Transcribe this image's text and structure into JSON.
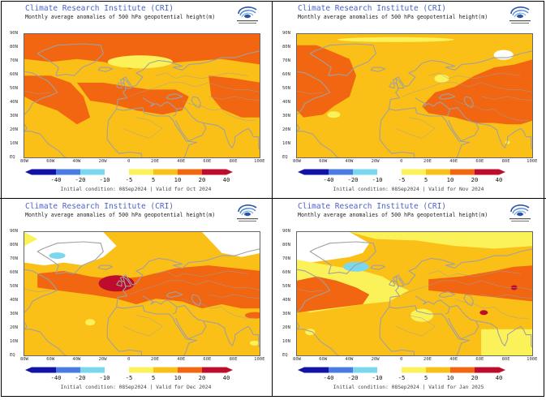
{
  "colors": {
    "c_neg40": "#1212a6",
    "c_neg20": "#4a7be0",
    "c_neg10": "#7ad7ee",
    "c_neutral": "#ffffff",
    "c_5": "#fbf25a",
    "c_10": "#fbc017",
    "c_20": "#f26511",
    "c_40": "#bd0c2c",
    "coast": "#a0a0a0",
    "title": "#4a63c9"
  },
  "common": {
    "title": "Climate Research Institute (CRI)",
    "lat_labels": [
      "90N",
      "80N",
      "70N",
      "60N",
      "50N",
      "40N",
      "30N",
      "20N",
      "10N",
      "EQ"
    ],
    "lon_labels": [
      "80W",
      "60W",
      "40W",
      "20W",
      "0",
      "20E",
      "40E",
      "60E",
      "80E",
      "100E"
    ],
    "colorbar_labels": [
      "-40",
      "-20",
      "-10",
      "-5",
      "5",
      "10",
      "20",
      "40"
    ]
  },
  "panels": [
    {
      "id": "oct",
      "subtitle": "Monthly average anomalies of 500 hPa geopotential height(m)",
      "footer": "Initial condition: 08Sep2024 | Valid for Oct 2024"
    },
    {
      "id": "nov",
      "subtitle": "Monthly average anomalies of 500 hPa geopotential height(m)",
      "footer": "Initial condition: 08Sep2024 | Valid for Nov 2024"
    },
    {
      "id": "dec",
      "subtitle": "Monthly average anomalies of 500 hPa geopotential height(m)",
      "footer": "Initial condition: 08Sep2024 | Valid for Dec 2024"
    },
    {
      "id": "jan",
      "subtitle": "Monthly average anomalies of 500 hPa geopotential height(m)",
      "footer": "Initial condition: 08Sep2024 | Valid for Jan 2025"
    }
  ]
}
